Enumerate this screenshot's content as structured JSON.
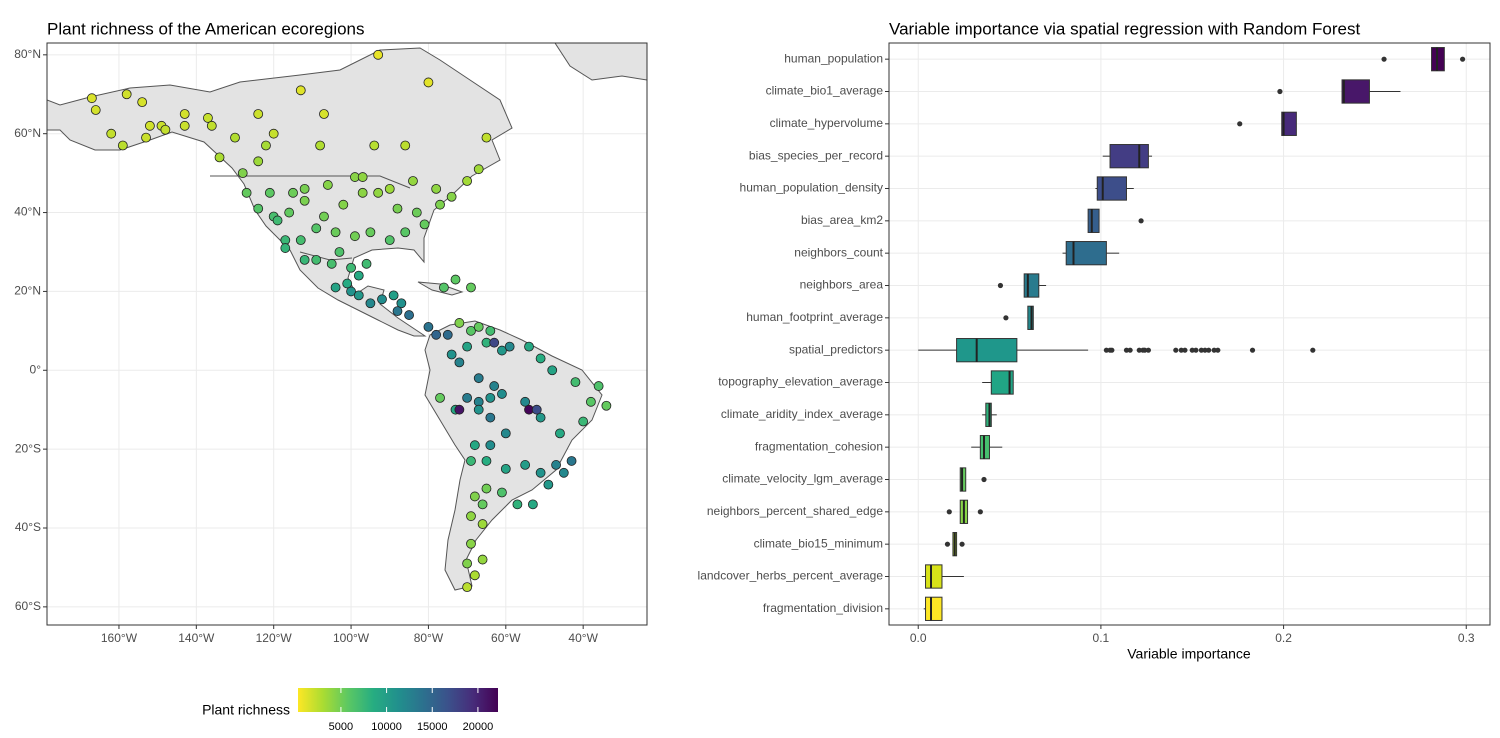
{
  "chart_data": [
    {
      "type": "scatter",
      "title": "Plant richness of the American ecoregions",
      "xlim": [
        -178.6,
        -23.5
      ],
      "ylim": [
        -64.6,
        83
      ],
      "xticks": [
        {
          "value": -160,
          "label": "160°W"
        },
        {
          "value": -140,
          "label": "140°W"
        },
        {
          "value": -120,
          "label": "120°W"
        },
        {
          "value": -100,
          "label": "100°W"
        },
        {
          "value": -80,
          "label": "80°W"
        },
        {
          "value": -60,
          "label": "60°W"
        },
        {
          "value": -40,
          "label": "40°W"
        }
      ],
      "yticks": [
        {
          "value": 80,
          "label": "80°N"
        },
        {
          "value": 60,
          "label": "60°N"
        },
        {
          "value": 40,
          "label": "40°N"
        },
        {
          "value": 20,
          "label": "20°N"
        },
        {
          "value": 0,
          "label": "0°"
        },
        {
          "value": -20,
          "label": "20°S"
        },
        {
          "value": -40,
          "label": "40°S"
        },
        {
          "value": -60,
          "label": "60°S"
        }
      ],
      "grid": true,
      "x": [
        -167,
        -158,
        -154,
        -166,
        -162,
        -159,
        -153,
        -152,
        -149,
        -148,
        -143,
        -143,
        -137,
        -136,
        -130,
        -124,
        -120,
        -113,
        -107,
        -93,
        -80,
        -134,
        -128,
        -122,
        -124,
        -108,
        -94,
        -86,
        -65,
        -67,
        -70,
        -78,
        -84,
        -90,
        -99,
        -97,
        -106,
        -112,
        -115,
        -121,
        -127,
        -124,
        -120,
        -116,
        -112,
        -107,
        -102,
        -97,
        -93,
        -88,
        -83,
        -77,
        -74,
        -81,
        -86,
        -90,
        -95,
        -99,
        -104,
        -109,
        -113,
        -117,
        -119,
        -117,
        -112,
        -109,
        -105,
        -100,
        -103,
        -96,
        -98,
        -100,
        -104,
        -101,
        -98,
        -95,
        -92,
        -89,
        -87,
        -88,
        -85,
        -80,
        -78,
        -76,
        -73,
        -69,
        -75,
        -72,
        -69,
        -67,
        -64,
        -61,
        -59,
        -65,
        -70,
        -74,
        -72,
        -67,
        -63,
        -63,
        -54,
        -51,
        -48,
        -42,
        -36,
        -34,
        -38,
        -40,
        -46,
        -51,
        -55,
        -61,
        -64,
        -67,
        -70,
        -77,
        -73,
        -72,
        -54,
        -52,
        -67,
        -64,
        -60,
        -64,
        -68,
        -69,
        -65,
        -60,
        -55,
        -51,
        -47,
        -43,
        -45,
        -49,
        -53,
        -57,
        -61,
        -65,
        -68,
        -66,
        -69,
        -66,
        -69,
        -66,
        -70,
        -68,
        -70
      ],
      "y": [
        69,
        70,
        68,
        66,
        60,
        57,
        59,
        62,
        62,
        61,
        65,
        62,
        64,
        62,
        59,
        65,
        60,
        71,
        65,
        80,
        73,
        54,
        50,
        57,
        53,
        57,
        57,
        57,
        59,
        51,
        48,
        46,
        48,
        46,
        49,
        49,
        47,
        46,
        45,
        45,
        45,
        41,
        39,
        40,
        43,
        39,
        42,
        45,
        45,
        41,
        40,
        42,
        44,
        37,
        35,
        33,
        35,
        34,
        35,
        36,
        33,
        33,
        38,
        31,
        28,
        28,
        27,
        26,
        30,
        27,
        24,
        20,
        21,
        22,
        19,
        17,
        18,
        19,
        17,
        15,
        14,
        11,
        9,
        21,
        23,
        21,
        9,
        12,
        10,
        11,
        10,
        5,
        6,
        7,
        6,
        4,
        2,
        -2,
        -4,
        7,
        6,
        3,
        0,
        -3,
        -4,
        -9,
        -8,
        -13,
        -16,
        -12,
        -8,
        -6,
        -7,
        -8,
        -7,
        -7,
        -10,
        -10,
        -10,
        -10,
        -10,
        -12,
        -16,
        -19,
        -19,
        -23,
        -23,
        -25,
        -24,
        -26,
        -24,
        -23,
        -26,
        -29,
        -34,
        -34,
        -31,
        -30,
        -32,
        -34,
        -37,
        -39,
        -44,
        -48,
        -49,
        -52,
        -55
      ],
      "richness": [
        1500,
        1800,
        1600,
        1700,
        2200,
        2500,
        2000,
        1800,
        2000,
        2200,
        1700,
        2000,
        2100,
        2300,
        2800,
        1900,
        2100,
        1300,
        1600,
        1000,
        1200,
        3000,
        4500,
        3200,
        3500,
        2800,
        2600,
        2500,
        2300,
        3400,
        3300,
        4000,
        3800,
        3500,
        4200,
        4000,
        4300,
        4800,
        5200,
        5800,
        5500,
        6200,
        6800,
        5600,
        4700,
        5000,
        4400,
        4100,
        3900,
        4800,
        5200,
        4600,
        4300,
        5500,
        6000,
        6300,
        5400,
        5000,
        5300,
        6200,
        6900,
        7500,
        7200,
        7800,
        7600,
        7000,
        6800,
        7300,
        6500,
        7100,
        8900,
        11000,
        9500,
        8800,
        10500,
        12000,
        11500,
        9800,
        11200,
        13500,
        14200,
        13800,
        15000,
        6200,
        5800,
        5500,
        14500,
        4500,
        6000,
        5500,
        7000,
        10500,
        12000,
        8000,
        9500,
        11000,
        12500,
        13000,
        12500,
        17500,
        9000,
        8500,
        9500,
        7000,
        6500,
        5500,
        6000,
        7500,
        9000,
        10500,
        12000,
        11500,
        11000,
        12500,
        13000,
        5500,
        9000,
        21000,
        22000,
        17000,
        11000,
        13500,
        12000,
        11500,
        9000,
        7500,
        8500,
        9500,
        10000,
        11000,
        12500,
        13500,
        12000,
        10500,
        9000,
        8000,
        6500,
        5000,
        4500,
        5500,
        4000,
        3500,
        4200,
        3800,
        4500,
        3000,
        2500
      ],
      "colorbar": {
        "title": "Plant richness",
        "limits": [
          300,
          22200
        ],
        "ticks": [
          5000,
          10000,
          15000,
          20000
        ],
        "colors": [
          "#fde725",
          "#aadc32",
          "#5cc863",
          "#27ad81",
          "#21908d",
          "#2c718e",
          "#3b518b",
          "#472c7a",
          "#440154"
        ]
      }
    },
    {
      "type": "boxplot",
      "title": "Variable importance via spatial regression with Random Forest",
      "x_label": "Variable importance",
      "xlim": [
        -0.016,
        0.313
      ],
      "xticks": [
        {
          "value": 0,
          "label": "0.0"
        },
        0.1,
        0.2,
        0.3
      ],
      "grid": true,
      "categories": [
        "human_population",
        "climate_bio1_average",
        "climate_hypervolume",
        "bias_species_per_record",
        "human_population_density",
        "bias_area_km2",
        "neighbors_count",
        "neighbors_area",
        "human_footprint_average",
        "spatial_predictors",
        "topography_elevation_average",
        "climate_aridity_index_average",
        "fragmentation_cohesion",
        "climate_velocity_lgm_average",
        "neighbors_percent_shared_edge",
        "climate_bio15_minimum",
        "landcover_herbs_percent_average",
        "fragmentation_division"
      ],
      "colors": [
        "#440154",
        "#481769",
        "#472a7a",
        "#433d84",
        "#3d4e8a",
        "#355e8d",
        "#2e6d8e",
        "#297b8e",
        "#23898e",
        "#1f978b",
        "#21a585",
        "#2eb37c",
        "#46c06f",
        "#65cb5e",
        "#89d548",
        "#b0dd2f",
        "#d8e219",
        "#fde725"
      ],
      "boxes": [
        {
          "min": 0.281,
          "q1": 0.281,
          "median": 0.284,
          "q3": 0.288,
          "max": 0.288,
          "outliers": [
            0.255,
            0.298
          ]
        },
        {
          "min": 0.232,
          "q1": 0.232,
          "median": 0.233,
          "q3": 0.247,
          "max": 0.264,
          "outliers": [
            0.198
          ]
        },
        {
          "min": 0.199,
          "q1": 0.199,
          "median": 0.2,
          "q3": 0.207,
          "max": 0.207,
          "outliers": [
            0.176
          ]
        },
        {
          "min": 0.101,
          "q1": 0.105,
          "median": 0.121,
          "q3": 0.126,
          "max": 0.128,
          "outliers": []
        },
        {
          "min": 0.097,
          "q1": 0.098,
          "median": 0.101,
          "q3": 0.114,
          "max": 0.118,
          "outliers": []
        },
        {
          "min": 0.093,
          "q1": 0.093,
          "median": 0.095,
          "q3": 0.099,
          "max": 0.099,
          "outliers": [
            0.122
          ]
        },
        {
          "min": 0.079,
          "q1": 0.081,
          "median": 0.085,
          "q3": 0.103,
          "max": 0.11,
          "outliers": []
        },
        {
          "min": 0.058,
          "q1": 0.058,
          "median": 0.06,
          "q3": 0.066,
          "max": 0.07,
          "outliers": [
            0.045
          ]
        },
        {
          "min": 0.06,
          "q1": 0.06,
          "median": 0.062,
          "q3": 0.063,
          "max": 0.063,
          "outliers": [
            0.048
          ]
        },
        {
          "min": 0.0,
          "q1": 0.021,
          "median": 0.032,
          "q3": 0.054,
          "max": 0.093,
          "outliers": [
            0.103,
            0.105,
            0.106,
            0.114,
            0.116,
            0.121,
            0.123,
            0.124,
            0.126,
            0.141,
            0.144,
            0.146,
            0.15,
            0.152,
            0.155,
            0.157,
            0.159,
            0.162,
            0.164,
            0.183,
            0.216
          ]
        },
        {
          "min": 0.035,
          "q1": 0.04,
          "median": 0.05,
          "q3": 0.052,
          "max": 0.052,
          "outliers": []
        },
        {
          "min": 0.035,
          "q1": 0.037,
          "median": 0.039,
          "q3": 0.04,
          "max": 0.043,
          "outliers": []
        },
        {
          "min": 0.029,
          "q1": 0.034,
          "median": 0.036,
          "q3": 0.039,
          "max": 0.046,
          "outliers": []
        },
        {
          "min": 0.023,
          "q1": 0.023,
          "median": 0.024,
          "q3": 0.026,
          "max": 0.026,
          "outliers": [
            0.036
          ]
        },
        {
          "min": 0.023,
          "q1": 0.023,
          "median": 0.025,
          "q3": 0.027,
          "max": 0.027,
          "outliers": [
            0.017,
            0.034
          ]
        },
        {
          "min": 0.019,
          "q1": 0.019,
          "median": 0.02,
          "q3": 0.021,
          "max": 0.021,
          "outliers": [
            0.016,
            0.024
          ]
        },
        {
          "min": 0.002,
          "q1": 0.004,
          "median": 0.007,
          "q3": 0.013,
          "max": 0.025,
          "outliers": []
        },
        {
          "min": 0.003,
          "q1": 0.004,
          "median": 0.007,
          "q3": 0.013,
          "max": 0.013,
          "outliers": []
        }
      ]
    }
  ]
}
